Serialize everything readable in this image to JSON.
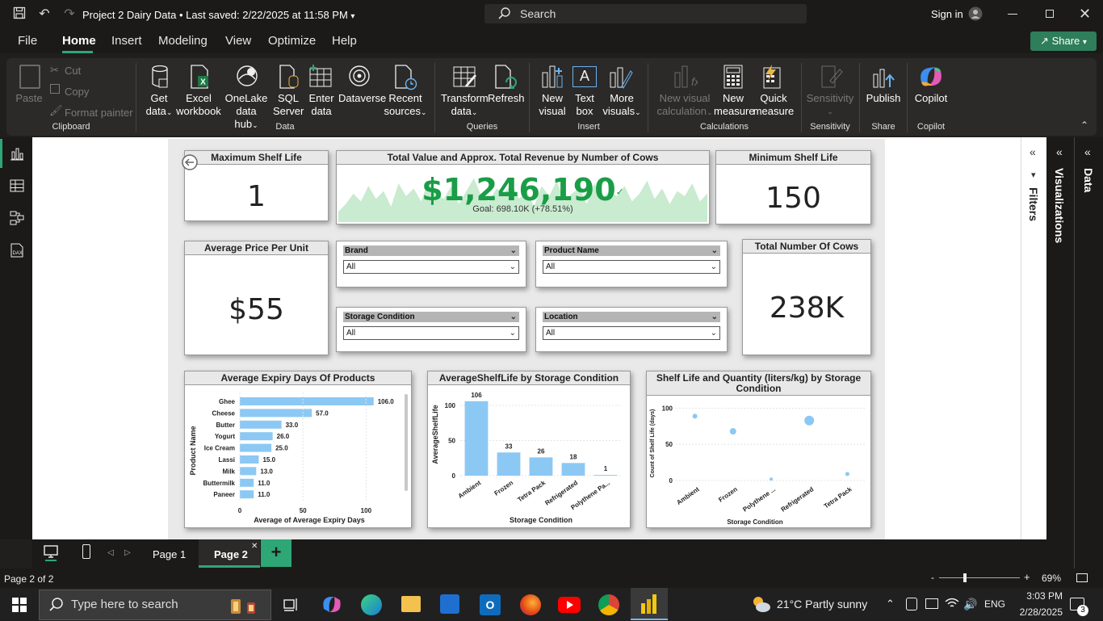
{
  "titlebar": {
    "document_title": "Project 2 Dairy Data",
    "saved_status": "• Last saved: 2/22/2025 at 11:58 PM",
    "search_placeholder": "Search",
    "signin_label": "Sign in"
  },
  "menu": {
    "items": [
      "File",
      "Home",
      "Insert",
      "Modeling",
      "View",
      "Optimize",
      "Help"
    ],
    "active": "Home",
    "share_label": "Share"
  },
  "ribbon": {
    "clipboard": {
      "paste": "Paste",
      "cut": "Cut",
      "copy": "Copy",
      "format_painter": "Format painter",
      "group": "Clipboard"
    },
    "data": {
      "get_data": [
        "Get",
        "data"
      ],
      "excel": [
        "Excel",
        "workbook"
      ],
      "onelake": [
        "OneLake",
        "data hub"
      ],
      "sql": [
        "SQL",
        "Server"
      ],
      "enter": [
        "Enter",
        "data"
      ],
      "dataverse": "Dataverse",
      "recent": [
        "Recent",
        "sources"
      ],
      "group": "Data"
    },
    "queries": {
      "transform": [
        "Transform",
        "data"
      ],
      "refresh": "Refresh",
      "group": "Queries"
    },
    "insert": {
      "new_visual": [
        "New",
        "visual"
      ],
      "text_box": [
        "Text",
        "box"
      ],
      "more_visuals": [
        "More",
        "visuals"
      ],
      "group": "Insert"
    },
    "calculations": {
      "new_visual_calc": [
        "New visual",
        "calculation"
      ],
      "new_measure": [
        "New",
        "measure"
      ],
      "quick_measure": [
        "Quick",
        "measure"
      ],
      "group": "Calculations"
    },
    "sensitivity": {
      "label": "Sensitivity",
      "group": "Sensitivity"
    },
    "share": {
      "publish": "Publish",
      "group": "Share"
    },
    "copilot": {
      "label": "Copilot",
      "group": "Copilot"
    }
  },
  "side_panels": {
    "filters": "Filters",
    "visualizations": "Visualizations",
    "data": "Data"
  },
  "cards": {
    "max_shelf": {
      "title": "Maximum Shelf Life",
      "value": "1"
    },
    "total_value": {
      "title": "Total Value and Approx. Total Revenue by Number of Cows",
      "value": "$1,246,190",
      "goal": "Goal: 698.10K (+78.51%)"
    },
    "min_shelf": {
      "title": "Minimum Shelf Life",
      "value": "150"
    },
    "avg_price": {
      "title": "Average Price Per Unit",
      "value": "$55"
    },
    "total_cows": {
      "title": "Total Number Of Cows",
      "value": "238K"
    }
  },
  "slicers": [
    {
      "label": "Brand",
      "value": "All"
    },
    {
      "label": "Product Name",
      "value": "All"
    },
    {
      "label": "Storage Condition",
      "value": "All"
    },
    {
      "label": "Location",
      "value": "All"
    }
  ],
  "chart_data": [
    {
      "type": "bar",
      "orientation": "horizontal",
      "title": "Average Expiry Days Of Products",
      "xlabel": "Average of Average Expiry Days",
      "ylabel": "Product Name",
      "categories": [
        "Ghee",
        "Cheese",
        "Butter",
        "Yogurt",
        "Ice Cream",
        "Lassi",
        "Milk",
        "Buttermilk",
        "Paneer"
      ],
      "values": [
        106.0,
        57.0,
        33.0,
        26.0,
        25.0,
        15.0,
        13.0,
        11.0,
        11.0
      ],
      "data_labels": [
        "106.0",
        "57.0",
        "33.0",
        "26.0",
        "25.0",
        "15.0",
        "13.0",
        "11.0",
        "11.0"
      ],
      "xticks": [
        "0",
        "50",
        "100"
      ],
      "xlim": [
        0,
        110
      ],
      "color": "#8cc8f4"
    },
    {
      "type": "bar",
      "title": "AverageShelfLife by Storage Condition",
      "xlabel": "Storage Condition",
      "ylabel": "AverageShelfLife",
      "categories": [
        "Ambient",
        "Frozen",
        "Tetra Pack",
        "Refrigerated",
        "Polythene Pa..."
      ],
      "values": [
        106,
        33,
        26,
        18,
        1
      ],
      "data_labels": [
        "106",
        "33",
        "26",
        "18",
        "1"
      ],
      "yticks": [
        "0",
        "50",
        "100"
      ],
      "ylim": [
        0,
        115
      ],
      "color": "#8cc8f4"
    },
    {
      "type": "scatter",
      "title": "Shelf Life and Quantity (liters/kg) by Storage Condition",
      "xlabel": "Storage Condition",
      "ylabel": "Count of Shelf Life (days)",
      "categories": [
        "Ambient",
        "Frozen",
        "Polythene ...",
        "Refrigerated",
        "Tetra Pack"
      ],
      "values": [
        89,
        68,
        2,
        83,
        9
      ],
      "sizes": [
        3,
        4,
        2,
        6,
        2.5
      ],
      "yticks": [
        "0",
        "50",
        "100"
      ],
      "ylim": [
        0,
        105
      ],
      "color": "#8cc8f4"
    }
  ],
  "sparkline": {
    "color": "#c9ebd0",
    "values": [
      20,
      35,
      55,
      40,
      70,
      45,
      60,
      30,
      75,
      50,
      65,
      40,
      80,
      55,
      45,
      70,
      35,
      60,
      85,
      50,
      40,
      65,
      55,
      75,
      45,
      60,
      30,
      70,
      50,
      80,
      40,
      55,
      65,
      35,
      75,
      45,
      60,
      50,
      70,
      40,
      55,
      80,
      45,
      65,
      35,
      60,
      50,
      75,
      40,
      55
    ]
  },
  "pages": {
    "tabs": [
      "Page 1",
      "Page 2"
    ],
    "active": "Page 2",
    "status": "Page 2 of 2",
    "zoom": "69%"
  },
  "taskbar": {
    "search_placeholder": "Type here to search",
    "weather": "21°C  Partly sunny",
    "language": "ENG",
    "time": "3:03 PM",
    "date": "2/28/2025",
    "notifications": "3"
  }
}
